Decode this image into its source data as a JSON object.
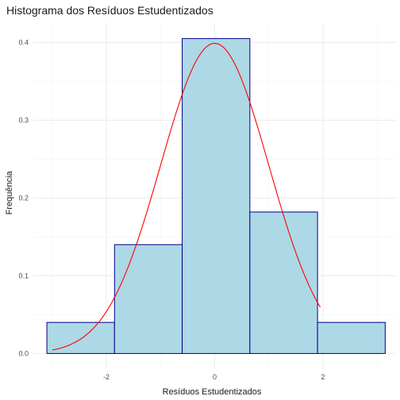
{
  "chart_data": {
    "type": "bar",
    "title": "Histograma dos Resíduos Estudentizados",
    "xlabel": "Resíduos Estudentizados",
    "ylabel": "Frequência",
    "xlim": [
      -3.35,
      3.35
    ],
    "ylim": [
      -0.02,
      0.425
    ],
    "x_ticks": [
      -2,
      0,
      2
    ],
    "x_tick_labels": [
      "-2",
      "0",
      "2"
    ],
    "y_ticks": [
      0.0,
      0.1,
      0.2,
      0.3,
      0.4
    ],
    "y_tick_labels": [
      "0.0",
      "0.1",
      "0.2",
      "0.3",
      "0.4"
    ],
    "grid": true,
    "bins": [
      {
        "start": -3.1,
        "end": -1.85,
        "value": 0.04
      },
      {
        "start": -1.85,
        "end": -0.6,
        "value": 0.14
      },
      {
        "start": -0.6,
        "end": 0.65,
        "value": 0.405
      },
      {
        "start": 0.65,
        "end": 1.9,
        "value": 0.182
      },
      {
        "start": 1.9,
        "end": 3.15,
        "value": 0.04
      }
    ],
    "density_curve": {
      "type": "line",
      "distribution": "normal",
      "mean": 0,
      "sd": 1,
      "x_range": [
        -3.0,
        1.95
      ]
    },
    "colors": {
      "bar_fill": "#add8e6",
      "bar_stroke": "#00008b",
      "curve": "#ff0000",
      "grid_major": "#ebebeb",
      "grid_minor": "#f5f5f5"
    }
  }
}
